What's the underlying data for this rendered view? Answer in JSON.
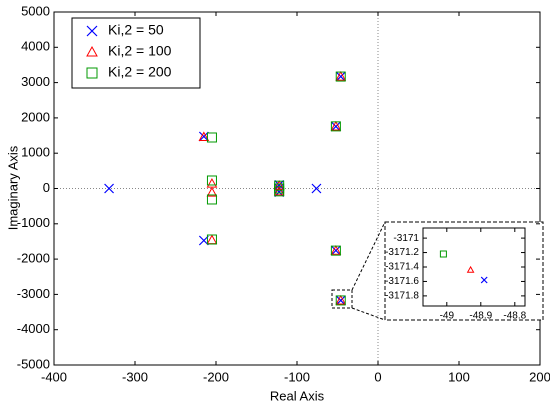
{
  "chart_data": [
    {
      "type": "scatter",
      "xlabel": "Real Axis",
      "ylabel": "Imaginary Axis",
      "xlim": [
        -400,
        200
      ],
      "xticks": [
        -400,
        -300,
        -200,
        -100,
        0,
        100,
        200
      ],
      "ylim": [
        -5000,
        5000
      ],
      "yticks": [
        -5000,
        -4000,
        -3000,
        -2000,
        -1000,
        0,
        1000,
        2000,
        3000,
        4000,
        5000
      ],
      "zero_lines": true,
      "legend": "upper left",
      "series": [
        {
          "name": "Ki,2 = 50",
          "color": "#0000ff",
          "marker": "x",
          "x": [
            -332,
            -76,
            -215,
            -215,
            -122,
            -122,
            -122,
            -52,
            -52,
            -46,
            -46
          ],
          "y": [
            0,
            0,
            1473,
            -1473,
            100,
            0,
            -100,
            1756,
            -1756,
            3171,
            -3171
          ]
        },
        {
          "name": "Ki,2 = 100",
          "color": "#ff0000",
          "marker": "^",
          "x": [
            -205,
            -205,
            -215,
            -205,
            -122,
            -122,
            -52,
            -52,
            -46,
            -46
          ],
          "y": [
            140,
            -113,
            1460,
            -1460,
            80,
            -80,
            1760,
            -1760,
            3171,
            -3171
          ]
        },
        {
          "name": "Ki,2 = 200",
          "color": "#009900",
          "marker": "s",
          "x": [
            -205,
            -205,
            -205,
            -205,
            -122,
            -122,
            -122,
            -52,
            -52,
            -46,
            -46
          ],
          "y": [
            1445,
            227,
            -311,
            -1445,
            80,
            0,
            -80,
            1760,
            -1760,
            3171,
            -3171
          ]
        }
      ]
    },
    {
      "type": "scatter",
      "xlim": [
        -49.07,
        -48.77
      ],
      "xticks": [
        -49,
        -48.9,
        -48.8
      ],
      "ylim": [
        -3171.94,
        -3170.86
      ],
      "yticks": [
        -3171,
        -3171.2,
        -3171.4,
        -3171.6,
        -3171.8
      ],
      "series": [
        {
          "color": "#0000ff",
          "marker": "x",
          "x": [
            -48.89
          ],
          "y": [
            -3171.58
          ]
        },
        {
          "color": "#ff0000",
          "marker": "^",
          "x": [
            -48.93
          ],
          "y": [
            -3171.44
          ]
        },
        {
          "color": "#009900",
          "marker": "s",
          "x": [
            -49.01
          ],
          "y": [
            -3171.22
          ]
        }
      ]
    }
  ]
}
